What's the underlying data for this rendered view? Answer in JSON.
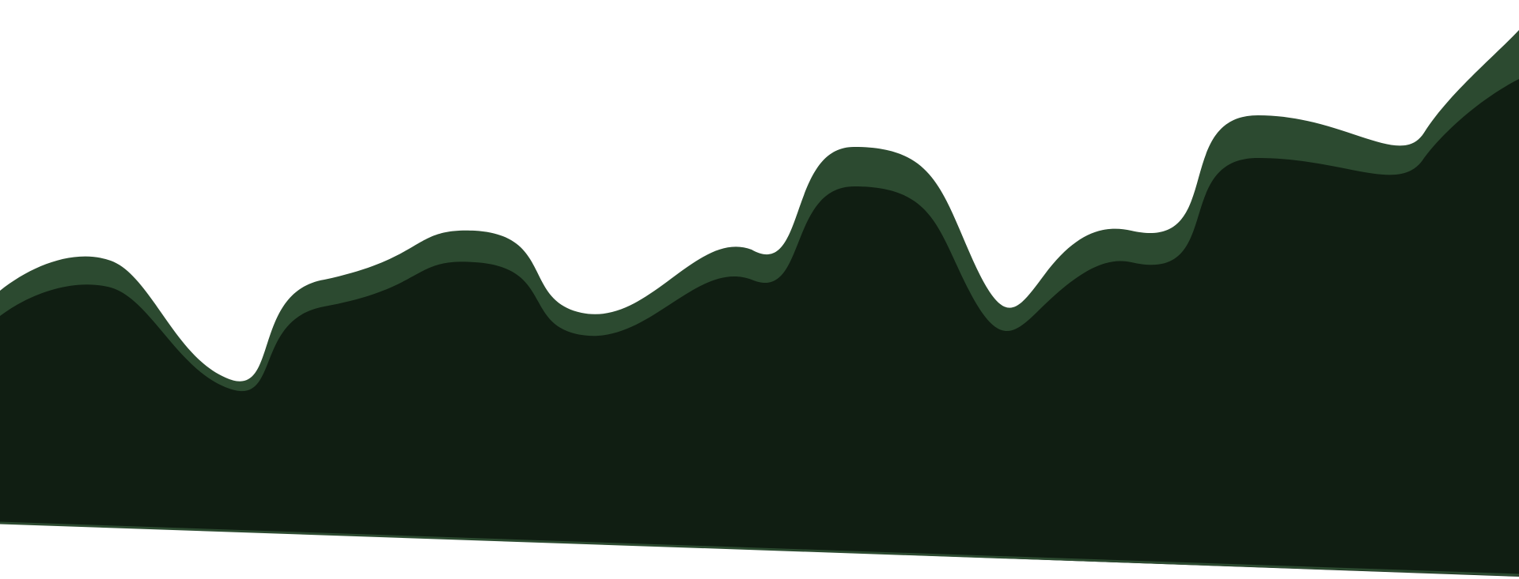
{
  "illustration": {
    "description_colors": {
      "background": "#ffffff",
      "back_wave": "#2c4a30",
      "front_wave": "#101e12"
    },
    "layers": [
      "back-wave",
      "front-wave"
    ]
  }
}
